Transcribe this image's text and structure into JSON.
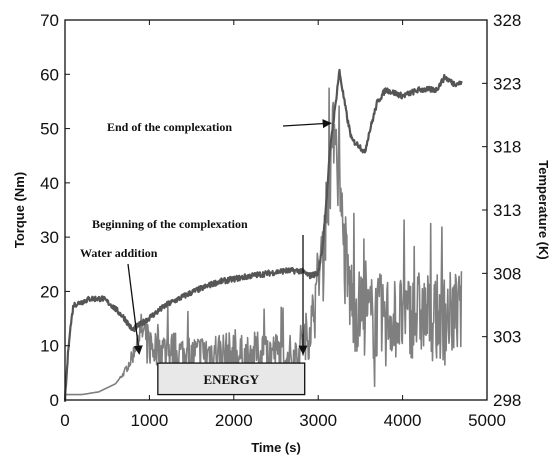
{
  "chart_data": {
    "type": "line",
    "xlabel": "Time (s)",
    "ylabel_left": "Torque (Nm)",
    "ylabel_right": "Temperature (K)",
    "xlim": [
      0,
      5000
    ],
    "ylim_left": [
      0,
      70
    ],
    "ylim_right": [
      298,
      328
    ],
    "x_ticks": [
      "0",
      "1000",
      "2000",
      "3000",
      "4000",
      "5000"
    ],
    "y_left_ticks": [
      "0",
      "10",
      "20",
      "30",
      "40",
      "50",
      "60",
      "70"
    ],
    "y_right_ticks": [
      "298",
      "303",
      "308",
      "313",
      "318",
      "323",
      "328"
    ],
    "grid": false,
    "series": [
      {
        "axis": "left",
        "color": "#7f7f7f",
        "x": [
          0,
          200,
          400,
          600,
          700,
          800,
          850,
          900,
          950,
          1000,
          1200,
          1500,
          1800,
          2100,
          2400,
          2700,
          2850,
          2950,
          3000,
          3050,
          3100,
          3150,
          3200,
          3250,
          3300,
          3350,
          3400,
          3500,
          3600,
          3800,
          4000,
          4200,
          4400,
          4600,
          4700
        ],
        "y": [
          1,
          1,
          1.5,
          3,
          5,
          8,
          11,
          13,
          12,
          10,
          9,
          8,
          9,
          8,
          9,
          8,
          11,
          16,
          22,
          28,
          35,
          44,
          52,
          38,
          28,
          22,
          18,
          16,
          15,
          15.5,
          15,
          16,
          15,
          16,
          16
        ],
        "noise": [
          0,
          0,
          0,
          0,
          0.5,
          1.5,
          2,
          3,
          4,
          4,
          4,
          4,
          4,
          4,
          4,
          4,
          5,
          6,
          7,
          8,
          8,
          8,
          6,
          8,
          10,
          10,
          9,
          8,
          8,
          8,
          8,
          8,
          8,
          8,
          8
        ]
      },
      {
        "axis": "right",
        "color": "#555555",
        "x": [
          0,
          50,
          100,
          300,
          450,
          550,
          700,
          800,
          850,
          900,
          1000,
          1200,
          1500,
          1800,
          2200,
          2600,
          2800,
          2900,
          3000,
          3050,
          3100,
          3150,
          3200,
          3250,
          3300,
          3350,
          3400,
          3500,
          3550,
          3600,
          3700,
          3800,
          4000,
          4200,
          4400,
          4500,
          4600,
          4700
        ],
        "y": [
          298,
          303,
          305.5,
          306,
          306,
          305.5,
          304.5,
          303.5,
          303.8,
          304,
          304.5,
          305.5,
          306.5,
          307.3,
          307.8,
          308.2,
          308.2,
          307.8,
          308,
          310,
          314,
          318.5,
          321,
          324,
          322,
          320,
          318.5,
          318,
          317.5,
          319,
          321.5,
          322.5,
          322,
          322.5,
          322.5,
          323.5,
          323,
          323
        ]
      }
    ],
    "annotations": [
      {
        "text": "Water addition",
        "x": 40,
        "y": 145,
        "target_x": 880,
        "target_y": 8.5
      },
      {
        "text": "Beginning of the complexation",
        "x": 60,
        "y": 228,
        "target_x": 2820,
        "target_y": 8.5
      },
      {
        "text": "End of the complexation",
        "x": 68,
        "y": 128,
        "target_x": 3150,
        "target_y": 51
      }
    ],
    "box_label": "ENERGY",
    "box_range": [
      1100,
      2840
    ],
    "box_y_range": [
      1,
      6.8
    ]
  }
}
